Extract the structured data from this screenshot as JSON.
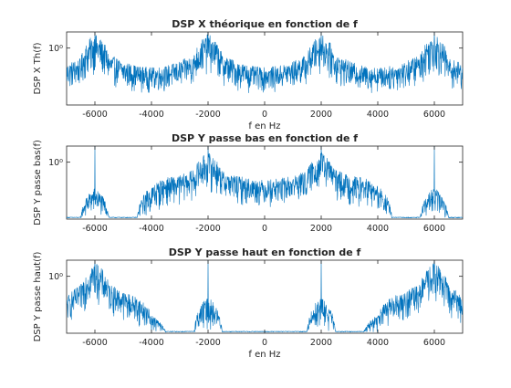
{
  "chart_data": [
    {
      "type": "line",
      "title": "DSP X théorique en fonction de f",
      "xlabel": "f en Hz",
      "ylabel": "DSP X Th(f)",
      "xlim": [
        -7000,
        7000
      ],
      "yscale": "log",
      "ylim": [
        0.012,
        3.5
      ],
      "x_ticks": [
        -6000,
        -4000,
        -2000,
        0,
        2000,
        4000,
        6000
      ],
      "x_tick_labels": [
        "-6000",
        "-4000",
        "-2000",
        "0",
        "2000",
        "4000",
        "6000"
      ],
      "y_ticks": [
        1
      ],
      "y_tick_labels": [
        "10⁰"
      ],
      "color": "#0072BD",
      "peaks": [
        -6000,
        -2000,
        2000,
        6000
      ],
      "x": [
        -7000,
        -6500,
        -6000,
        -5500,
        -5000,
        -4500,
        -4000,
        -3500,
        -3000,
        -2500,
        -2000,
        -1500,
        -1000,
        -500,
        0,
        500,
        1000,
        1500,
        2000,
        2500,
        3000,
        3500,
        4000,
        4500,
        5000,
        5500,
        6000,
        6500,
        7000
      ],
      "y_upper": [
        0.3,
        0.45,
        3.0,
        0.6,
        0.35,
        0.25,
        0.22,
        0.25,
        0.35,
        0.6,
        3.0,
        0.6,
        0.35,
        0.25,
        0.22,
        0.25,
        0.35,
        0.6,
        3.0,
        0.6,
        0.35,
        0.25,
        0.22,
        0.25,
        0.35,
        0.6,
        3.0,
        0.45,
        0.3
      ],
      "y_lower": [
        0.03,
        0.04,
        0.12,
        0.05,
        0.035,
        0.03,
        0.03,
        0.03,
        0.035,
        0.05,
        0.12,
        0.05,
        0.035,
        0.03,
        0.03,
        0.03,
        0.035,
        0.05,
        0.12,
        0.05,
        0.035,
        0.03,
        0.03,
        0.03,
        0.035,
        0.05,
        0.12,
        0.04,
        0.03
      ]
    },
    {
      "type": "line",
      "title": "DSP Y passe bas en fonction de f",
      "xlabel": "",
      "ylabel": "DSP Y passe bas(f)",
      "xlim": [
        -7000,
        7000
      ],
      "yscale": "log",
      "ylim": [
        0.012,
        3.5
      ],
      "x_ticks": [
        -6000,
        -4000,
        -2000,
        0,
        2000,
        4000,
        6000
      ],
      "x_tick_labels": [
        "-6000",
        "-4000",
        "-2000",
        "0",
        "2000",
        "4000",
        "6000"
      ],
      "y_ticks": [
        1
      ],
      "y_tick_labels": [
        "10⁰"
      ],
      "color": "#0072BD",
      "peaks": [
        -6000,
        -2000,
        2000,
        6000
      ],
      "x": [
        -7000,
        -6500,
        -6000,
        -5500,
        -5000,
        -4500,
        -4000,
        -3500,
        -3000,
        -2500,
        -2000,
        -1500,
        -1000,
        -500,
        0,
        500,
        1000,
        1500,
        2000,
        2500,
        3000,
        3500,
        4000,
        4500,
        5000,
        5500,
        6000,
        6500,
        7000
      ],
      "y_upper": [
        0.014,
        0.014,
        0.14,
        0.014,
        0.014,
        0.014,
        0.16,
        0.3,
        0.35,
        0.55,
        2.2,
        0.5,
        0.35,
        0.28,
        0.25,
        0.28,
        0.35,
        0.5,
        2.2,
        0.55,
        0.35,
        0.3,
        0.16,
        0.014,
        0.014,
        0.014,
        0.14,
        0.014,
        0.014
      ],
      "y_lower": [
        0.013,
        0.013,
        0.013,
        0.013,
        0.013,
        0.013,
        0.013,
        0.03,
        0.035,
        0.05,
        0.1,
        0.05,
        0.035,
        0.03,
        0.03,
        0.03,
        0.035,
        0.05,
        0.1,
        0.05,
        0.035,
        0.03,
        0.013,
        0.013,
        0.013,
        0.013,
        0.013,
        0.013,
        0.013
      ]
    },
    {
      "type": "line",
      "title": "DSP Y passe haut en fonction de f",
      "xlabel": "f en Hz",
      "ylabel": "DSP Y passe haut(f)",
      "xlim": [
        -7000,
        7000
      ],
      "yscale": "log",
      "ylim": [
        0.012,
        3.5
      ],
      "x_ticks": [
        -6000,
        -4000,
        -2000,
        0,
        2000,
        4000,
        6000
      ],
      "x_tick_labels": [
        "-6000",
        "-4000",
        "-2000",
        "0",
        "2000",
        "4000",
        "6000"
      ],
      "y_ticks": [
        1
      ],
      "y_tick_labels": [
        "10⁰"
      ],
      "color": "#0072BD",
      "peaks": [
        -6000,
        -2000,
        2000,
        6000
      ],
      "x": [
        -7000,
        -6500,
        -6000,
        -5500,
        -5000,
        -4500,
        -4000,
        -3500,
        -3000,
        -2500,
        -2000,
        -1500,
        -1000,
        -500,
        0,
        500,
        1000,
        1500,
        2000,
        2500,
        3000,
        3500,
        4000,
        4500,
        5000,
        5500,
        6000,
        6500,
        7000
      ],
      "y_upper": [
        0.2,
        0.5,
        3.0,
        0.55,
        0.3,
        0.2,
        0.05,
        0.014,
        0.014,
        0.014,
        0.2,
        0.014,
        0.014,
        0.014,
        0.014,
        0.014,
        0.014,
        0.014,
        0.2,
        0.014,
        0.014,
        0.014,
        0.05,
        0.2,
        0.3,
        0.55,
        3.0,
        0.5,
        0.2
      ],
      "y_lower": [
        0.02,
        0.04,
        0.12,
        0.05,
        0.03,
        0.02,
        0.013,
        0.013,
        0.013,
        0.013,
        0.013,
        0.013,
        0.013,
        0.013,
        0.013,
        0.013,
        0.013,
        0.013,
        0.013,
        0.013,
        0.013,
        0.013,
        0.013,
        0.02,
        0.03,
        0.05,
        0.12,
        0.04,
        0.02
      ]
    }
  ]
}
